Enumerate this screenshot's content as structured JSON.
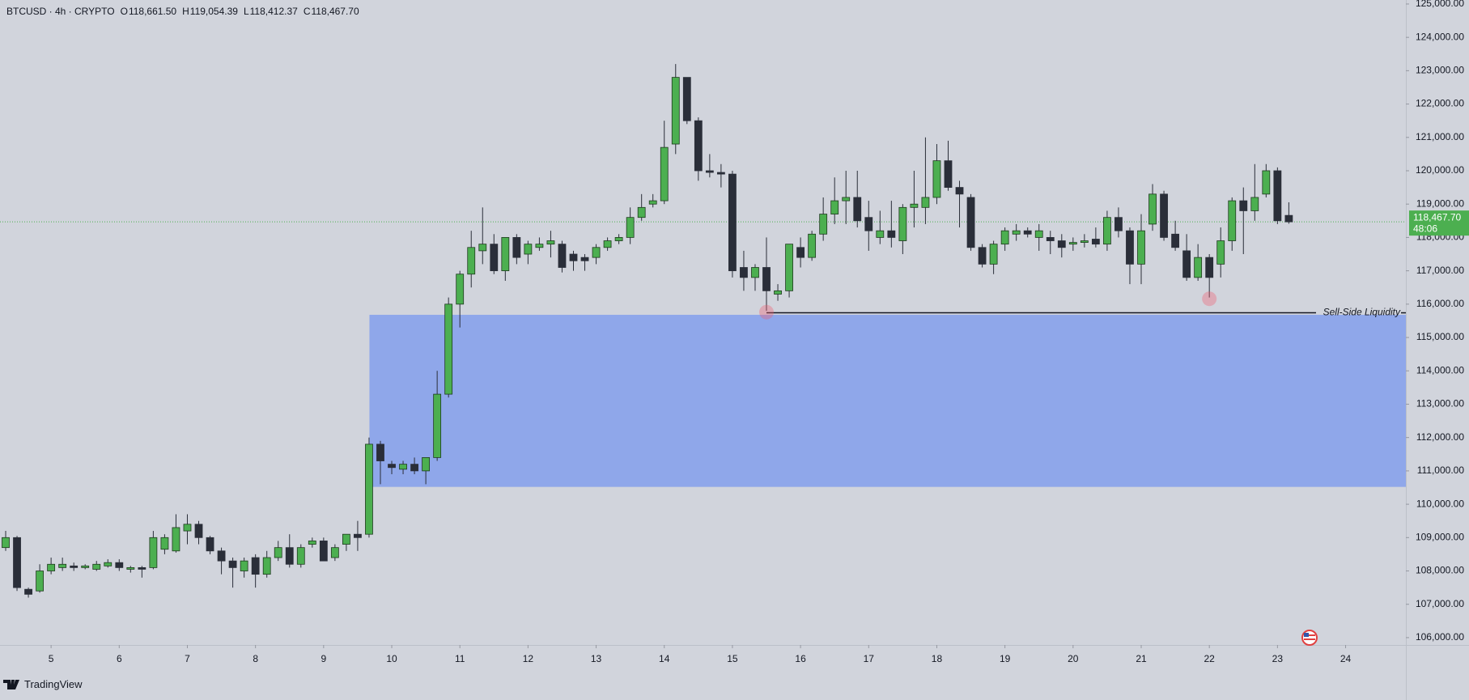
{
  "chart_data": {
    "type": "candlestick",
    "header": {
      "symbol": "BTCUSD · 4h · CRYPTO",
      "ohlc": [
        {
          "key": "O",
          "value": "118,661.50"
        },
        {
          "key": "H",
          "value": "119,054.39"
        },
        {
          "key": "L",
          "value": "118,412.37"
        },
        {
          "key": "C",
          "value": "118,467.70"
        }
      ]
    },
    "categories": [
      null,
      null,
      null,
      null,
      "5",
      null,
      null,
      null,
      null,
      null,
      "6",
      null,
      null,
      null,
      null,
      null,
      "7",
      null,
      null,
      null,
      null,
      null,
      "8",
      null,
      null,
      null,
      null,
      null,
      "9",
      null,
      null,
      null,
      null,
      null,
      "10",
      null,
      null,
      null,
      null,
      null,
      "11",
      null,
      null,
      null,
      null,
      null,
      "12",
      null,
      null,
      null,
      null,
      null,
      "13",
      null,
      null,
      null,
      null,
      null,
      "14",
      null,
      null,
      null,
      null,
      null,
      "15",
      null,
      null,
      null,
      null,
      null,
      "16",
      null,
      null,
      null,
      null,
      null,
      "17",
      null,
      null,
      null,
      null,
      null,
      "18",
      null,
      null,
      null,
      null,
      null,
      "19",
      null,
      null,
      null,
      null,
      null,
      "20",
      null,
      null,
      null,
      null,
      null,
      "21",
      null,
      null,
      null,
      null,
      null,
      "22",
      null,
      null,
      null,
      null,
      null,
      "23",
      null,
      null,
      null,
      null,
      null,
      "24"
    ],
    "open": [
      108700,
      109000,
      107450,
      107400,
      108000,
      108100,
      108150,
      108100,
      108050,
      108150,
      108250,
      108050,
      108100,
      108100,
      108650,
      108600,
      109200,
      109400,
      109000,
      108600,
      108300,
      108000,
      108400,
      107900,
      108400,
      108700,
      108200,
      108800,
      108900,
      108400,
      108800,
      109100,
      109100,
      111800,
      111200,
      111050,
      111200,
      111000,
      111400,
      113300,
      116000,
      116900,
      117600,
      117800,
      117000,
      118000,
      117500,
      117700,
      117800,
      117800,
      117500,
      117400,
      117400,
      117700,
      117900,
      118000,
      118600,
      119000,
      119100,
      120800,
      122800,
      121500,
      120000,
      119950,
      119900,
      117100,
      116800,
      117100,
      116300,
      116400,
      117700,
      117400,
      118100,
      118700,
      119100,
      119200,
      118600,
      118000,
      118200,
      117900,
      118900,
      118900,
      119200,
      120300,
      119500,
      119200,
      117700,
      117200,
      117800,
      118100,
      118200,
      118000,
      118000,
      117900,
      117800,
      117850,
      117950,
      117800,
      118600,
      118200,
      117200,
      118400,
      119300,
      118100,
      117600,
      116800,
      117400,
      117200,
      117900,
      119100,
      118800,
      119300,
      120000,
      118661.5,
      null,
      null,
      null,
      null,
      null
    ],
    "high": [
      109200,
      109050,
      107500,
      108200,
      108400,
      108400,
      108250,
      108200,
      108300,
      108350,
      108350,
      108150,
      108150,
      109200,
      109100,
      109700,
      109700,
      109500,
      109050,
      108700,
      108400,
      108400,
      108500,
      108600,
      108900,
      109100,
      108800,
      109000,
      109000,
      108800,
      109100,
      109500,
      112000,
      111900,
      111300,
      111300,
      111400,
      111400,
      114000,
      116200,
      117000,
      118200,
      118900,
      118100,
      118000,
      118100,
      117900,
      118000,
      118200,
      117900,
      117600,
      117500,
      117800,
      118000,
      118100,
      118900,
      119300,
      119300,
      121500,
      123200,
      122800,
      121600,
      120500,
      120200,
      120000,
      117600,
      117200,
      118000,
      116600,
      117800,
      118000,
      118200,
      119200,
      119800,
      120000,
      120000,
      119100,
      118800,
      119100,
      119000,
      120000,
      121000,
      120800,
      120900,
      119700,
      119300,
      117800,
      117900,
      118300,
      118400,
      118300,
      118400,
      118200,
      118100,
      118000,
      118100,
      118300,
      118800,
      118900,
      118300,
      118700,
      119600,
      119400,
      118500,
      118100,
      117800,
      117500,
      118300,
      119200,
      119500,
      120200,
      120200,
      120100,
      119054.39,
      null,
      null,
      null,
      null,
      null
    ],
    "low": [
      108600,
      107400,
      107200,
      107350,
      107900,
      108000,
      108000,
      108050,
      108000,
      108100,
      108000,
      107950,
      107800,
      108050,
      108500,
      108550,
      108800,
      108800,
      108500,
      107900,
      107500,
      107800,
      107500,
      107800,
      108300,
      108100,
      108100,
      108700,
      108300,
      108300,
      108600,
      108600,
      109000,
      110600,
      110900,
      110900,
      110900,
      110600,
      111300,
      113200,
      115300,
      116500,
      117200,
      116900,
      116700,
      117200,
      117200,
      117600,
      117400,
      116950,
      117000,
      117000,
      117200,
      117600,
      117800,
      117800,
      118500,
      118900,
      119000,
      120500,
      121400,
      119700,
      119800,
      119500,
      116800,
      116400,
      116400,
      115800,
      116100,
      116200,
      117100,
      117300,
      117900,
      118400,
      118400,
      118300,
      117600,
      117800,
      117700,
      117500,
      118300,
      118400,
      119000,
      119400,
      118300,
      117600,
      117100,
      116900,
      117600,
      117900,
      118000,
      117600,
      117500,
      117400,
      117600,
      117700,
      117700,
      117600,
      118000,
      116600,
      116600,
      118200,
      117900,
      117600,
      116700,
      116700,
      116200,
      116800,
      117600,
      117500,
      118500,
      119200,
      118400,
      118412.37,
      null,
      null,
      null,
      null,
      null
    ],
    "close": [
      109000,
      107500,
      107300,
      108000,
      108200,
      108200,
      108100,
      108150,
      108200,
      108250,
      108100,
      108100,
      108050,
      109000,
      109000,
      109300,
      109400,
      109000,
      108600,
      108300,
      108100,
      108300,
      107900,
      108400,
      108700,
      108200,
      108700,
      108900,
      108300,
      108700,
      109100,
      109000,
      111800,
      111300,
      111100,
      111200,
      111000,
      111400,
      113300,
      116000,
      116900,
      117700,
      117800,
      117000,
      118000,
      117400,
      117800,
      117800,
      117900,
      117100,
      117300,
      117300,
      117700,
      117900,
      118000,
      118600,
      118900,
      119100,
      120700,
      122800,
      121500,
      120000,
      119950,
      119900,
      117000,
      116800,
      117100,
      116400,
      116400,
      117800,
      117400,
      118100,
      118700,
      119100,
      119200,
      118500,
      118200,
      118200,
      118000,
      118900,
      119000,
      119200,
      120300,
      119500,
      119300,
      117700,
      117200,
      117800,
      118200,
      118200,
      118100,
      118200,
      117900,
      117700,
      117850,
      117900,
      117800,
      118600,
      118200,
      117200,
      118200,
      119300,
      118000,
      117700,
      116800,
      117400,
      116800,
      117900,
      119100,
      118800,
      119200,
      120000,
      118500,
      118467.7,
      null,
      null,
      null,
      null,
      null
    ],
    "up_color": "#4caf50",
    "down_color": "#2a2e39",
    "ylim": [
      105780,
      125120
    ],
    "yticks": [
      {
        "value": 106000,
        "label": "106,000.00"
      },
      {
        "value": 107000,
        "label": "107,000.00"
      },
      {
        "value": 108000,
        "label": "108,000.00"
      },
      {
        "value": 109000,
        "label": "109,000.00"
      },
      {
        "value": 110000,
        "label": "110,000.00"
      },
      {
        "value": 111000,
        "label": "111,000.00"
      },
      {
        "value": 112000,
        "label": "112,000.00"
      },
      {
        "value": 113000,
        "label": "113,000.00"
      },
      {
        "value": 114000,
        "label": "114,000.00"
      },
      {
        "value": 115000,
        "label": "115,000.00"
      },
      {
        "value": 116000,
        "label": "116,000.00"
      },
      {
        "value": 117000,
        "label": "117,000.00"
      },
      {
        "value": 118000,
        "label": "118,000.00"
      },
      {
        "value": 119000,
        "label": "119,000.00"
      },
      {
        "value": 120000,
        "label": "120,000.00"
      },
      {
        "value": 121000,
        "label": "121,000.00"
      },
      {
        "value": 122000,
        "label": "122,000.00"
      },
      {
        "value": 123000,
        "label": "123,000.00"
      },
      {
        "value": 124000,
        "label": "124,000.00"
      },
      {
        "value": 125000,
        "label": "125,000.00"
      }
    ],
    "last_price": {
      "value": 118467.7,
      "label": "118,467.70",
      "countdown": "48:06",
      "color": "#4caf50"
    },
    "zone": {
      "start": 32,
      "top": 115680,
      "bottom": 110520,
      "color": "#8fa7ea"
    },
    "liquidity": {
      "label": "Sell-Side Liquidity",
      "price": 115740,
      "start": 67
    },
    "markers": [
      {
        "index": 67,
        "price": 115760
      },
      {
        "index": 106,
        "price": 116160
      }
    ],
    "footer": "TradingView"
  }
}
